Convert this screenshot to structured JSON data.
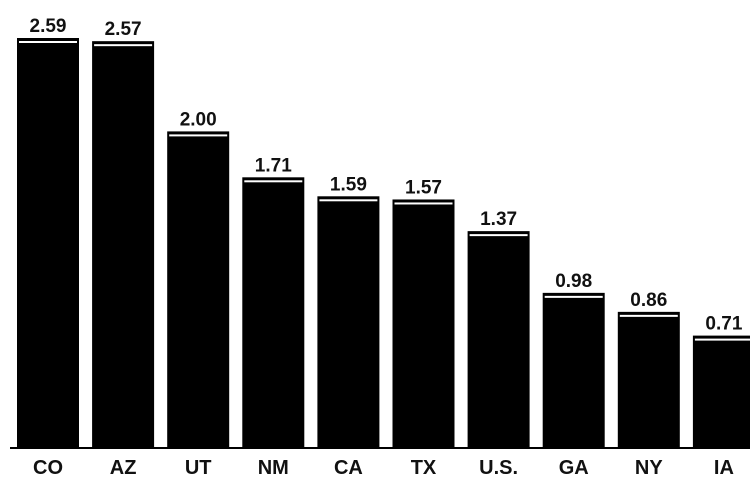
{
  "chart_data": {
    "type": "bar",
    "categories": [
      "CO",
      "AZ",
      "UT",
      "NM",
      "CA",
      "TX",
      "U.S.",
      "GA",
      "NY",
      "IA"
    ],
    "values": [
      2.59,
      2.57,
      2.0,
      1.71,
      1.59,
      1.57,
      1.37,
      0.98,
      0.86,
      0.71
    ],
    "value_labels": [
      "2.59",
      "2.57",
      "2.00",
      "1.71",
      "1.59",
      "1.57",
      "1.37",
      "0.98",
      "0.86",
      "0.71"
    ],
    "title": "",
    "xlabel": "",
    "ylabel": "",
    "ylim": [
      0,
      2.59
    ],
    "grid": false,
    "bar_color": "#000000",
    "background": "#ffffff"
  }
}
